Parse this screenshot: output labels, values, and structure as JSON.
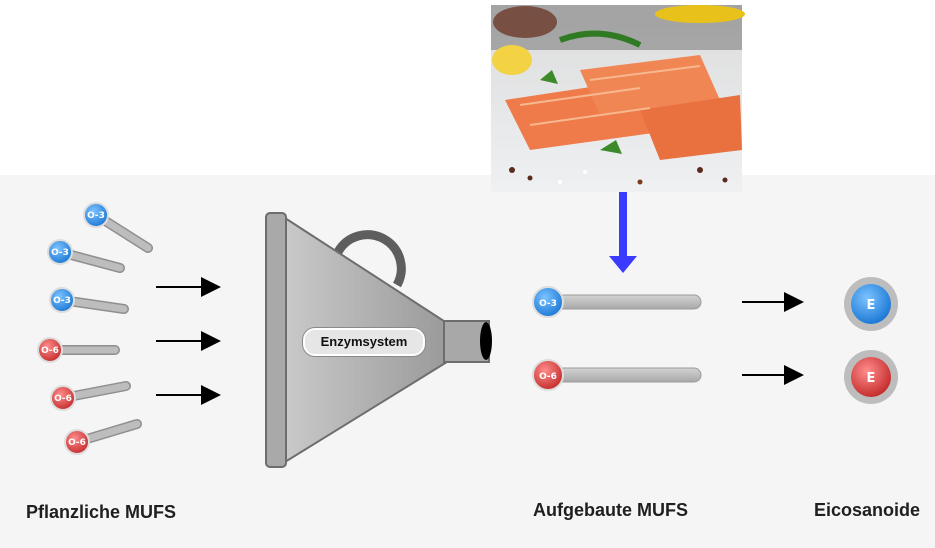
{
  "labels": {
    "left": "Pflanzliche MUFS",
    "middle": "Aufgebaute MUFS",
    "right": "Eicosanoide"
  },
  "enzyme": "Enzymsystem",
  "molecules": {
    "omega3": "O-3",
    "omega6": "O-6",
    "eicosanoid": "E"
  },
  "colors": {
    "omega3": "#2f8fe8",
    "omega6": "#e04848",
    "arrow_down": "#3b3bff",
    "panel": "#f5f5f5"
  },
  "image": {
    "subject": "salmon fillets with herbs, peppercorns and lemon"
  }
}
